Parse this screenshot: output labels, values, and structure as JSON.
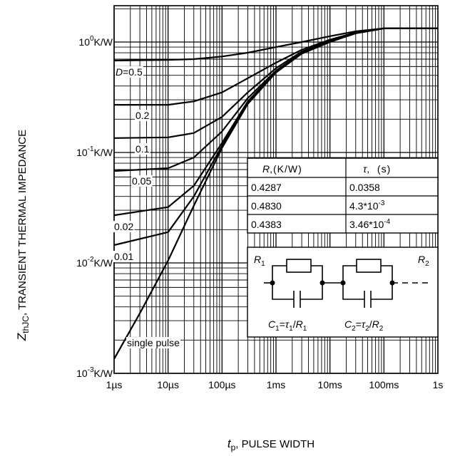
{
  "chart_data": {
    "type": "line",
    "scale": {
      "x": "log",
      "y": "log"
    },
    "xlim_s": [
      1e-06,
      1
    ],
    "ylim_KW": [
      0.001,
      2
    ],
    "grid": true,
    "y_title": {
      "main": "Z",
      "sub": "thJC",
      "rest": ", TRANSIENT THERMAL IMPEDANCE"
    },
    "x_title": {
      "main": "t",
      "sub": "p",
      "rest": ", PULSE WIDTH"
    },
    "y_ticks": [
      {
        "value": 1,
        "base": "10",
        "exp": "0",
        "unit": "K/W"
      },
      {
        "value": 0.1,
        "base": "10",
        "exp": "-1",
        "unit": "K/W"
      },
      {
        "value": 0.01,
        "base": "10",
        "exp": "-2",
        "unit": "K/W"
      },
      {
        "value": 0.001,
        "base": "10",
        "exp": "-3",
        "unit": "K/W"
      }
    ],
    "x_ticks": [
      {
        "value": 1e-06,
        "label": "1µs"
      },
      {
        "value": 1e-05,
        "label": "10µs"
      },
      {
        "value": 0.0001,
        "label": "100µs"
      },
      {
        "value": 0.001,
        "label": "1ms"
      },
      {
        "value": 0.01,
        "label": "10ms"
      },
      {
        "value": 0.1,
        "label": "100ms"
      },
      {
        "value": 1,
        "label": "1s"
      }
    ],
    "series": [
      {
        "name": "D=0.5",
        "D": 0.5,
        "label_prefix": "D",
        "label_value": "=0.5",
        "points": [
          [
            1e-06,
            0.68
          ],
          [
            1e-05,
            0.69
          ],
          [
            3e-05,
            0.7
          ],
          [
            0.0001,
            0.74
          ],
          [
            0.0003,
            0.8
          ],
          [
            0.001,
            0.9
          ],
          [
            0.003,
            1.0
          ],
          [
            0.01,
            1.13
          ],
          [
            0.03,
            1.25
          ],
          [
            0.1,
            1.33
          ],
          [
            1,
            1.33
          ]
        ]
      },
      {
        "name": "0.2",
        "D": 0.2,
        "label": "0.2",
        "points": [
          [
            1e-06,
            0.27
          ],
          [
            1e-05,
            0.27
          ],
          [
            3e-05,
            0.29
          ],
          [
            0.0001,
            0.35
          ],
          [
            0.0003,
            0.47
          ],
          [
            0.001,
            0.65
          ],
          [
            0.003,
            0.85
          ],
          [
            0.01,
            1.05
          ],
          [
            0.03,
            1.22
          ],
          [
            0.1,
            1.33
          ],
          [
            1,
            1.33
          ]
        ]
      },
      {
        "name": "0.1",
        "D": 0.1,
        "label": "0.1",
        "points": [
          [
            1e-06,
            0.135
          ],
          [
            1e-05,
            0.137
          ],
          [
            3e-05,
            0.15
          ],
          [
            0.0001,
            0.21
          ],
          [
            0.0003,
            0.35
          ],
          [
            0.001,
            0.58
          ],
          [
            0.003,
            0.82
          ],
          [
            0.01,
            1.03
          ],
          [
            0.03,
            1.21
          ],
          [
            0.1,
            1.33
          ],
          [
            1,
            1.33
          ]
        ]
      },
      {
        "name": "0.05",
        "D": 0.05,
        "label": "0.05",
        "points": [
          [
            1e-06,
            0.068
          ],
          [
            1e-05,
            0.072
          ],
          [
            3e-05,
            0.09
          ],
          [
            0.0001,
            0.155
          ],
          [
            0.0003,
            0.31
          ],
          [
            0.001,
            0.55
          ],
          [
            0.003,
            0.8
          ],
          [
            0.01,
            1.02
          ],
          [
            0.03,
            1.2
          ],
          [
            0.1,
            1.33
          ],
          [
            1,
            1.33
          ]
        ]
      },
      {
        "name": "0.02",
        "D": 0.02,
        "label": "0.02",
        "points": [
          [
            1e-06,
            0.027
          ],
          [
            1e-05,
            0.032
          ],
          [
            3e-05,
            0.05
          ],
          [
            0.0001,
            0.122
          ],
          [
            0.0003,
            0.29
          ],
          [
            0.001,
            0.54
          ],
          [
            0.003,
            0.79
          ],
          [
            0.01,
            1.01
          ],
          [
            0.03,
            1.2
          ],
          [
            0.1,
            1.33
          ],
          [
            1,
            1.33
          ]
        ]
      },
      {
        "name": "0.01",
        "D": 0.01,
        "label": "0.01",
        "points": [
          [
            1e-06,
            0.0145
          ],
          [
            1e-05,
            0.019
          ],
          [
            3e-05,
            0.04
          ],
          [
            0.0001,
            0.115
          ],
          [
            0.0003,
            0.28
          ],
          [
            0.001,
            0.535
          ],
          [
            0.003,
            0.79
          ],
          [
            0.01,
            1.01
          ],
          [
            0.03,
            1.2
          ],
          [
            0.1,
            1.33
          ],
          [
            1,
            1.33
          ]
        ]
      },
      {
        "name": "single pulse",
        "D": 0,
        "label": "single pulse",
        "points": [
          [
            1e-06,
            0.00135
          ],
          [
            3e-06,
            0.0035
          ],
          [
            1e-05,
            0.0105
          ],
          [
            3e-05,
            0.033
          ],
          [
            0.0001,
            0.11
          ],
          [
            0.0003,
            0.275
          ],
          [
            0.001,
            0.53
          ],
          [
            0.003,
            0.785
          ],
          [
            0.01,
            1.0
          ],
          [
            0.03,
            1.2
          ],
          [
            0.1,
            1.33
          ],
          [
            1,
            1.33
          ]
        ]
      }
    ],
    "table": {
      "headers": [
        {
          "sym": "R",
          "unit": ",(K/W)"
        },
        {
          "sym": "τ",
          "unit": ",  (s)"
        }
      ],
      "rows": [
        {
          "r": "0.4287",
          "tau": "0.0358",
          "tau_exp": ""
        },
        {
          "r": "0.4830",
          "tau": "4.3*10",
          "tau_exp": "-3"
        },
        {
          "r": "0.4383",
          "tau": "3.46*10",
          "tau_exp": "-4"
        }
      ]
    },
    "circuit": {
      "r1": {
        "sym": "R",
        "sub": "1"
      },
      "r2": {
        "sym": "R",
        "sub": "2"
      },
      "c1": {
        "c": "C",
        "csub": "1",
        "eq": "=",
        "tau": "τ",
        "tsub": "1",
        "slash": "/",
        "r": "R",
        "rsub": "1"
      },
      "c2": {
        "c": "C",
        "csub": "2",
        "eq": "=",
        "tau": "τ",
        "tsub": "2",
        "slash": "/",
        "r": "R",
        "rsub": "2"
      }
    }
  }
}
